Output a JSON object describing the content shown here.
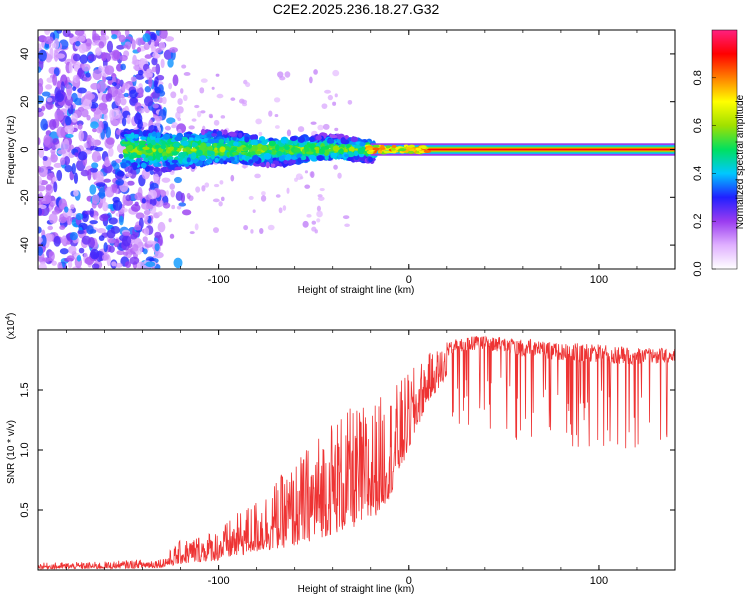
{
  "title": "C2E2.2025.236.18.27.G32",
  "chart_data": [
    {
      "type": "heatmap",
      "name": "spectrogram",
      "xlabel": "Height of straight line (km)",
      "ylabel": "Frequency (Hz)",
      "xlim": [
        -195,
        140
      ],
      "ylim": [
        -50,
        50
      ],
      "x_ticks": [
        -100,
        0,
        100
      ],
      "x_tick_labels": [
        "-100",
        "0",
        "100"
      ],
      "y_ticks": [
        -40,
        -20,
        0,
        20,
        40
      ],
      "y_tick_labels": [
        "-40",
        "-20",
        "0",
        "20",
        "40"
      ],
      "description_points": [
        {
          "x_range": [
            -195,
            -140
          ],
          "frequency_spread": [
            -50,
            50
          ],
          "amplitude": "scattered noise 0.1-0.4"
        },
        {
          "x_range": [
            -150,
            -20
          ],
          "frequency_spread": [
            -8,
            8
          ],
          "amplitude": "0.3-0.6"
        },
        {
          "x_range": [
            -20,
            10
          ],
          "frequency_spread": [
            -3,
            3
          ],
          "amplitude": "0.6-0.9"
        },
        {
          "x_range": [
            10,
            140
          ],
          "frequency_spread": [
            -1,
            1
          ],
          "amplitude": "0.9-1.0"
        }
      ],
      "colorbar": {
        "label": "Normalized spectral amplitude",
        "range": [
          0,
          1
        ],
        "ticks": [
          0.0,
          0.2,
          0.4,
          0.6,
          0.8
        ],
        "tick_labels": [
          "0.0",
          "0.2",
          "0.4",
          "0.6",
          "0.8"
        ],
        "colors": [
          "#ffffff",
          "#e0b0ff",
          "#9a3cf0",
          "#2020ff",
          "#00c8ff",
          "#00e060",
          "#a0e000",
          "#ffff00",
          "#ff8000",
          "#ff0000",
          "#ff2080"
        ]
      }
    },
    {
      "type": "line",
      "name": "snr",
      "xlabel": "Height of straight line (km)",
      "ylabel": "SNR (10 * v/v)",
      "y_multiplier": "(x10",
      "y_multiplier_exp": "4",
      "y_multiplier_close": ")",
      "xlim": [
        -195,
        140
      ],
      "ylim": [
        0,
        2.0
      ],
      "x_ticks": [
        -100,
        0,
        100
      ],
      "x_tick_labels": [
        "-100",
        "0",
        "100"
      ],
      "y_ticks": [
        0.5,
        1.0,
        1.5
      ],
      "y_tick_labels": [
        "0.5",
        "1.0",
        "1.5"
      ],
      "line_color": "#ee3333",
      "envelope": {
        "x": [
          -195,
          -160,
          -130,
          -120,
          -100,
          -80,
          -60,
          -40,
          -20,
          -10,
          0,
          10,
          20,
          30,
          40,
          60,
          80,
          100,
          120,
          140
        ],
        "upper": [
          0.06,
          0.07,
          0.1,
          0.25,
          0.35,
          0.6,
          0.9,
          1.3,
          1.4,
          1.5,
          1.65,
          1.8,
          1.9,
          1.95,
          1.95,
          1.93,
          1.9,
          1.88,
          1.85,
          1.85
        ],
        "lower": [
          0.01,
          0.01,
          0.02,
          0.05,
          0.08,
          0.15,
          0.2,
          0.3,
          0.4,
          0.6,
          1.0,
          1.4,
          1.6,
          1.65,
          1.65,
          1.55,
          1.5,
          1.5,
          1.5,
          1.55
        ]
      }
    }
  ]
}
